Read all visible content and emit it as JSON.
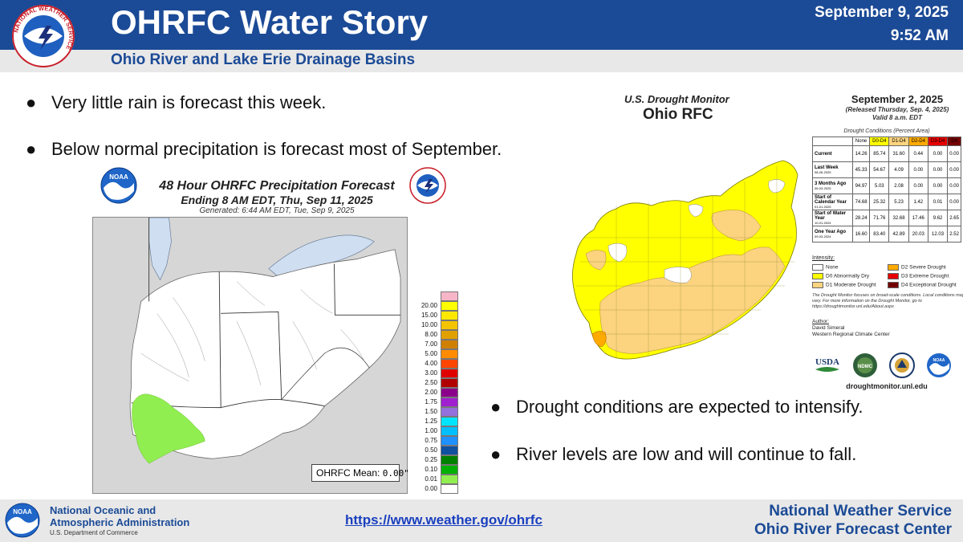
{
  "header": {
    "title": "OHRFC Water Story",
    "subtitle": "Ohio River and Lake Erie Drainage Basins",
    "date": "September 9, 2025",
    "time": "9:52 AM",
    "nws_logo_text": "NATIONAL WEATHER SERVICE"
  },
  "bullets": {
    "rain": "Very little rain is forecast this week.",
    "precip": "Below normal precipitation is forecast most of September.",
    "drought": "Drought conditions are expected to intensify.",
    "river": "River levels are low and will continue to fall.",
    "marker": "●"
  },
  "precip_map": {
    "title": "48 Hour OHRFC Precipitation Forecast",
    "ending": "Ending 8 AM EDT, Thu, Sep 11, 2025",
    "generated": "Generated: 6:44 AM EDT, Tue, Sep 9, 2025",
    "mean_label": "OHRFC Mean:",
    "mean_value": "0.00\"",
    "noaa_logo_text": "NOAA",
    "legend": [
      {
        "label": "",
        "color": "#f7b6c8"
      },
      {
        "label": "20.00",
        "color": "#ffff00"
      },
      {
        "label": "15.00",
        "color": "#ffe800"
      },
      {
        "label": "10.00",
        "color": "#f5c400"
      },
      {
        "label": "8.00",
        "color": "#e0a000"
      },
      {
        "label": "7.00",
        "color": "#d08000"
      },
      {
        "label": "5.00",
        "color": "#ff8c00"
      },
      {
        "label": "4.00",
        "color": "#ff4500"
      },
      {
        "label": "3.00",
        "color": "#e00000"
      },
      {
        "label": "2.50",
        "color": "#b00000"
      },
      {
        "label": "2.00",
        "color": "#8b008b"
      },
      {
        "label": "1.75",
        "color": "#a020d0"
      },
      {
        "label": "1.50",
        "color": "#9370db"
      },
      {
        "label": "1.25",
        "color": "#00e5ff"
      },
      {
        "label": "1.00",
        "color": "#00bfff"
      },
      {
        "label": "0.75",
        "color": "#1e90ff"
      },
      {
        "label": "0.50",
        "color": "#1050a0"
      },
      {
        "label": "0.25",
        "color": "#008000"
      },
      {
        "label": "0.10",
        "color": "#00b000"
      },
      {
        "label": "0.01",
        "color": "#90ee50"
      },
      {
        "label": "0.00",
        "color": "#ffffff"
      }
    ]
  },
  "drought_monitor": {
    "title": "U.S. Drought Monitor",
    "region": "Ohio RFC",
    "date": "September 2, 2025",
    "released": "(Released Thursday, Sep. 4, 2025)",
    "valid": "Valid 8 a.m. EDT",
    "table_title": "Drought Conditions (Percent Area)",
    "columns": [
      "None",
      "D0-D4",
      "D1-D4",
      "D2-D4",
      "D3-D4",
      "D4"
    ],
    "column_colors": [
      "#ffffff",
      "#ffff00",
      "#fcd37f",
      "#ffaa00",
      "#e60000",
      "#730000"
    ],
    "rows": [
      {
        "label": "Current",
        "sub": "",
        "values": [
          "14.26",
          "85.74",
          "31.60",
          "0.44",
          "0.00",
          "0.00"
        ]
      },
      {
        "label": "Last Week",
        "sub": "08-26-2025",
        "values": [
          "45.33",
          "54.67",
          "4.09",
          "0.00",
          "0.00",
          "0.00"
        ]
      },
      {
        "label": "3 Months Ago",
        "sub": "06-03-2025",
        "values": [
          "94.97",
          "5.03",
          "2.08",
          "0.00",
          "0.00",
          "0.00"
        ]
      },
      {
        "label": "Start of Calendar Year",
        "sub": "01-01-2025",
        "values": [
          "74.68",
          "25.32",
          "5.23",
          "1.42",
          "0.01",
          "0.00"
        ]
      },
      {
        "label": "Start of Water Year",
        "sub": "10-01-2024",
        "values": [
          "28.24",
          "71.76",
          "32.68",
          "17.46",
          "9.62",
          "2.65"
        ]
      },
      {
        "label": "One Year Ago",
        "sub": "09-03-2024",
        "values": [
          "16.60",
          "83.40",
          "42.89",
          "20.03",
          "12.03",
          "2.52"
        ]
      }
    ],
    "intensity_title": "Intensity:",
    "intensity": [
      {
        "label": "None",
        "color": "#ffffff"
      },
      {
        "label": "D0 Abnormally Dry",
        "color": "#ffff00"
      },
      {
        "label": "D1 Moderate Drought",
        "color": "#fcd37f"
      },
      {
        "label": "D2 Severe Drought",
        "color": "#ffaa00"
      },
      {
        "label": "D3 Extreme Drought",
        "color": "#e60000"
      },
      {
        "label": "D4 Exceptional Drought",
        "color": "#730000"
      }
    ],
    "note": "The Drought Monitor focuses on broad-scale conditions. Local conditions may vary. For more information on the Drought Monitor, go to https://droughtmonitor.unl.edu/About.aspx",
    "author_label": "Author:",
    "author_name": "David Simeral",
    "author_org": "Western Regional Climate Center",
    "logo_usda": "USDA",
    "logo_ndmc": "NDMC",
    "logo_noaa": "NOAA",
    "url": "droughtmonitor.unl.edu"
  },
  "footer": {
    "noaa_name1": "National Oceanic and",
    "noaa_name2": "Atmospheric Administration",
    "noaa_dept": "U.S. Department of Commerce",
    "noaa_logo_text": "NOAA",
    "url": "https://www.weather.gov/ohrfc",
    "nws": "National Weather Service",
    "ohrfc": "Ohio River Forecast Center"
  }
}
